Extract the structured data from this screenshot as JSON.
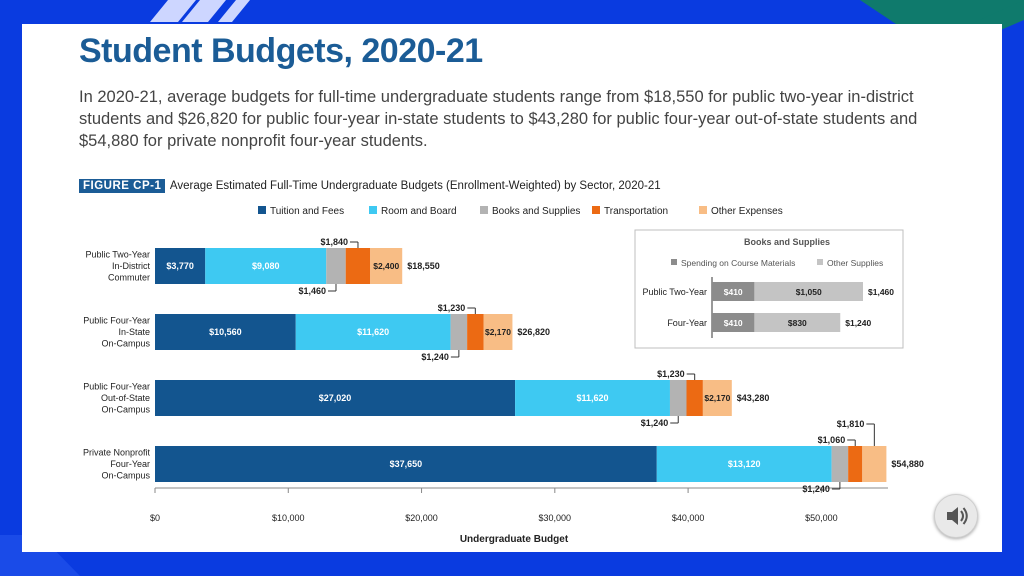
{
  "slide": {
    "title": "Student Budgets, 2020-21",
    "intro": "In 2020-21, average budgets for full-time undergraduate students range from $18,550 for public two-year in-district students and $26,820 for public four-year in-state students to $43,280 for public four-year out-of-state students and $54,880 for private nonprofit four-year students.",
    "figure_tag": "FIGURE CP-1",
    "figure_caption": "Average Estimated Full-Time Undergraduate Budgets (Enrollment-Weighted) by Sector, 2020-21"
  },
  "colors": {
    "tuition": "#13558f",
    "room": "#3ec9f2",
    "books": "#b3b3b3",
    "transport": "#ec6a13",
    "other": "#f8bd85",
    "spending": "#8c8c8c",
    "other_supplies": "#c4c4c4"
  },
  "audio_icon": "speaker-icon",
  "chart_data": [
    {
      "type": "bar",
      "orientation": "horizontal",
      "stacked": true,
      "title": "Average Estimated Full-Time Undergraduate Budgets (Enrollment-Weighted) by Sector, 2020-21",
      "xlabel": "Undergraduate Budget",
      "ylabel": "",
      "xlim": [
        0,
        55000
      ],
      "x_ticks": [
        0,
        10000,
        20000,
        30000,
        40000,
        50000
      ],
      "x_tick_labels": [
        "$0",
        "$10,000",
        "$20,000",
        "$30,000",
        "$40,000",
        "$50,000"
      ],
      "categories": [
        [
          "Public Two-Year",
          "In-District",
          "Commuter"
        ],
        [
          "Public Four-Year",
          "In-State",
          "On-Campus"
        ],
        [
          "Public Four-Year",
          "Out-of-State",
          "On-Campus"
        ],
        [
          "Private Nonprofit",
          "Four-Year",
          "On-Campus"
        ]
      ],
      "series": [
        {
          "name": "Tuition and Fees",
          "key": "tuition",
          "values": [
            3770,
            10560,
            27020,
            37650
          ],
          "labels": [
            "$3,770",
            "$10,560",
            "$27,020",
            "$37,650"
          ]
        },
        {
          "name": "Room and Board",
          "key": "room",
          "values": [
            9080,
            11620,
            11620,
            13120
          ],
          "labels": [
            "$9,080",
            "$11,620",
            "$11,620",
            "$13,120"
          ]
        },
        {
          "name": "Books and Supplies",
          "key": "books",
          "values": [
            1460,
            1240,
            1240,
            1240
          ],
          "labels": [
            "$1,460",
            "$1,240",
            "$1,240",
            "$1,240"
          ]
        },
        {
          "name": "Transportation",
          "key": "transport",
          "values": [
            1840,
            1230,
            1230,
            1060
          ],
          "labels": [
            "$1,840",
            "$1,230",
            "$1,230",
            "$1,060"
          ]
        },
        {
          "name": "Other Expenses",
          "key": "other",
          "values": [
            2400,
            2170,
            2170,
            1810
          ],
          "labels": [
            "$2,400",
            "$2,170",
            "$2,170",
            "$1,810"
          ]
        }
      ],
      "totals": [
        18550,
        26820,
        43280,
        54880
      ],
      "total_labels": [
        "$18,550",
        "$26,820",
        "$43,280",
        "$54,880"
      ],
      "grid": false,
      "legend": "top"
    },
    {
      "type": "bar",
      "orientation": "horizontal",
      "stacked": true,
      "title": "Books and Supplies",
      "categories": [
        "Public Two-Year",
        "Four-Year"
      ],
      "series": [
        {
          "name": "Spending on Course Materials",
          "key": "spending",
          "values": [
            410,
            410
          ],
          "labels": [
            "$410",
            "$410"
          ]
        },
        {
          "name": "Other Supplies",
          "key": "other_supplies",
          "values": [
            1050,
            830
          ],
          "labels": [
            "$1,050",
            "$830"
          ]
        }
      ],
      "totals": [
        1460,
        1240
      ],
      "total_labels": [
        "$1,460",
        "$1,240"
      ],
      "xlim": [
        0,
        1460
      ],
      "legend": "top"
    }
  ]
}
